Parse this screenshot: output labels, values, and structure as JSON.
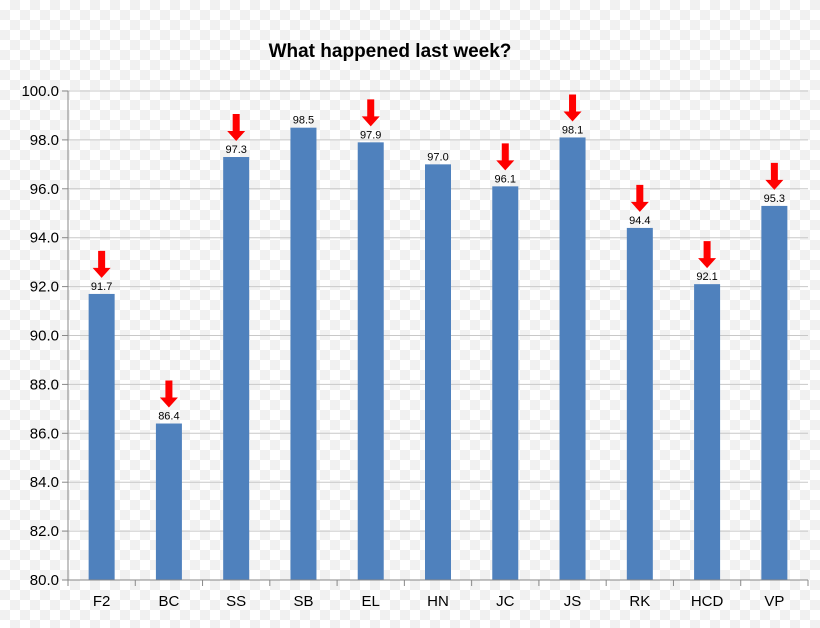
{
  "chart_data": {
    "type": "bar",
    "title": "What happened last week?",
    "categories": [
      "F2",
      "BC",
      "SS",
      "SB",
      "EL",
      "HN",
      "JC",
      "JS",
      "RK",
      "HCD",
      "VP"
    ],
    "values": [
      91.7,
      86.4,
      97.3,
      98.5,
      97.9,
      97.0,
      96.1,
      98.1,
      94.4,
      92.1,
      95.3
    ],
    "data_labels": [
      "91.7",
      "86.4",
      "97.3",
      "98.5",
      "97.9",
      "97.0",
      "96.1",
      "98.1",
      "94.4",
      "92.1",
      "95.3"
    ],
    "down_arrows": [
      true,
      true,
      true,
      false,
      true,
      false,
      true,
      true,
      true,
      true,
      true
    ],
    "ylim": [
      80,
      100
    ],
    "yticks": [
      80,
      82,
      84,
      86,
      88,
      90,
      92,
      94,
      96,
      98,
      100
    ],
    "ytick_labels": [
      "80.0",
      "82.0",
      "84.0",
      "86.0",
      "88.0",
      "90.0",
      "92.0",
      "94.0",
      "96.0",
      "98.0",
      "100.0"
    ],
    "xlabel": "",
    "ylabel": "",
    "grid": true,
    "legend": "none",
    "colors": {
      "bar": "#4f81bd",
      "arrow": "#ff0000",
      "grid": "#c8c8c8",
      "axis": "#888888"
    }
  }
}
